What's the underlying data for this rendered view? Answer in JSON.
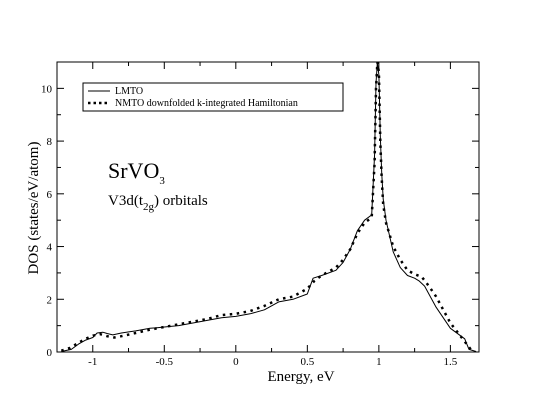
{
  "chart_data": {
    "type": "line",
    "xlabel": "Energy, eV",
    "ylabel": "DOS (states/eV/atom)",
    "xlim": [
      -1.25,
      1.7
    ],
    "ylim": [
      0,
      11
    ],
    "xticks": [
      -1,
      -0.5,
      0,
      0.5,
      1,
      1.5
    ],
    "xtick_labels": [
      "-1",
      "-0.5",
      "0",
      "0.5",
      "1",
      "1.5"
    ],
    "yticks": [
      0,
      2,
      4,
      6,
      8,
      10
    ],
    "ytick_labels": [
      "0",
      "2",
      "4",
      "6",
      "8",
      "10"
    ],
    "grid": false,
    "legend_position": "top-left",
    "annotation": {
      "title_main": "SrVO",
      "title_sub": "3",
      "subtitle_prefix": "V3d(t",
      "subtitle_sub": "2g",
      "subtitle_suffix": ") orbitals"
    },
    "series": [
      {
        "name": "LMTO",
        "style": "solid",
        "x": [
          -1.22,
          -1.15,
          -1.1,
          -1.05,
          -1.0,
          -0.97,
          -0.93,
          -0.9,
          -0.86,
          -0.8,
          -0.7,
          -0.6,
          -0.55,
          -0.5,
          -0.4,
          -0.3,
          -0.2,
          -0.1,
          0.0,
          0.1,
          0.2,
          0.3,
          0.4,
          0.5,
          0.52,
          0.54,
          0.6,
          0.7,
          0.75,
          0.8,
          0.85,
          0.9,
          0.95,
          0.97,
          0.98,
          0.99,
          1.0,
          1.01,
          1.02,
          1.03,
          1.05,
          1.1,
          1.15,
          1.2,
          1.25,
          1.28,
          1.32,
          1.4,
          1.5,
          1.6,
          1.63,
          1.68
        ],
        "values": [
          0.02,
          0.1,
          0.3,
          0.45,
          0.55,
          0.72,
          0.75,
          0.7,
          0.65,
          0.72,
          0.8,
          0.9,
          0.92,
          0.95,
          1.0,
          1.1,
          1.2,
          1.3,
          1.35,
          1.45,
          1.6,
          1.9,
          2.0,
          2.2,
          2.5,
          2.8,
          2.9,
          3.1,
          3.4,
          3.9,
          4.6,
          5.0,
          5.2,
          7.5,
          10.2,
          11.0,
          10.5,
          8.2,
          6.8,
          5.8,
          5.0,
          3.8,
          3.2,
          2.9,
          2.8,
          2.7,
          2.5,
          1.7,
          0.9,
          0.5,
          0.1,
          0.02
        ]
      },
      {
        "name": "NMTO downfolded k-integrated Hamiltonian",
        "style": "dotted",
        "x": [
          -1.22,
          -1.16,
          -1.1,
          -1.05,
          -1.0,
          -0.95,
          -0.9,
          -0.85,
          -0.8,
          -0.7,
          -0.6,
          -0.5,
          -0.4,
          -0.3,
          -0.2,
          -0.1,
          0.0,
          0.1,
          0.2,
          0.3,
          0.4,
          0.5,
          0.55,
          0.6,
          0.7,
          0.75,
          0.8,
          0.85,
          0.9,
          0.95,
          0.97,
          0.98,
          0.99,
          1.0,
          1.01,
          1.02,
          1.03,
          1.05,
          1.1,
          1.15,
          1.2,
          1.25,
          1.3,
          1.35,
          1.4,
          1.5,
          1.6,
          1.65
        ],
        "values": [
          0.05,
          0.15,
          0.35,
          0.5,
          0.62,
          0.68,
          0.6,
          0.55,
          0.6,
          0.72,
          0.85,
          0.95,
          1.05,
          1.15,
          1.25,
          1.4,
          1.45,
          1.55,
          1.75,
          2.0,
          2.1,
          2.4,
          2.7,
          2.9,
          3.2,
          3.5,
          3.9,
          4.5,
          4.9,
          5.1,
          7.2,
          10.0,
          11.0,
          10.6,
          8.0,
          6.6,
          5.6,
          4.9,
          4.0,
          3.5,
          3.1,
          2.95,
          2.85,
          2.5,
          2.1,
          1.1,
          0.4,
          0.05
        ]
      }
    ]
  }
}
